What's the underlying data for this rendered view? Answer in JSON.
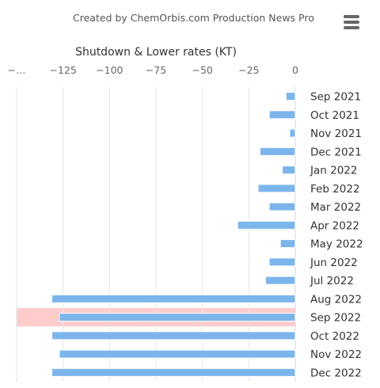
{
  "header": {
    "credit": "Created by ChemOrbis.com Production News Pro",
    "menu_icon": "hamburger-menu-icon"
  },
  "chart_data": {
    "type": "bar",
    "orientation": "horizontal",
    "axis_title": "Shutdown & Lower rates (KT)",
    "x_ticks": [
      "−…",
      "−125",
      "−100",
      "−75",
      "−50",
      "−25",
      "0"
    ],
    "xlim": [
      -150,
      0
    ],
    "grid": true,
    "categories": [
      "Sep 2021",
      "Oct 2021",
      "Nov 2021",
      "Dec 2021",
      "Jan 2022",
      "Feb 2022",
      "Mar 2022",
      "Apr 2022",
      "May 2022",
      "Jun 2022",
      "Jul 2022",
      "Aug 2022",
      "Sep 2022",
      "Oct 2022",
      "Nov 2022",
      "Dec 2022"
    ],
    "values": [
      -5,
      -14,
      -3,
      -19,
      -7,
      -20,
      -14,
      -31,
      -8,
      -14,
      -16,
      -131,
      -127,
      -131,
      -127,
      -131
    ],
    "highlighted_category": "Sep 2022",
    "colors": {
      "bar": "#7cb5ec",
      "highlight": "#ffcccc",
      "grid": "#e6e6e6",
      "axis": "#ccd6eb"
    }
  }
}
